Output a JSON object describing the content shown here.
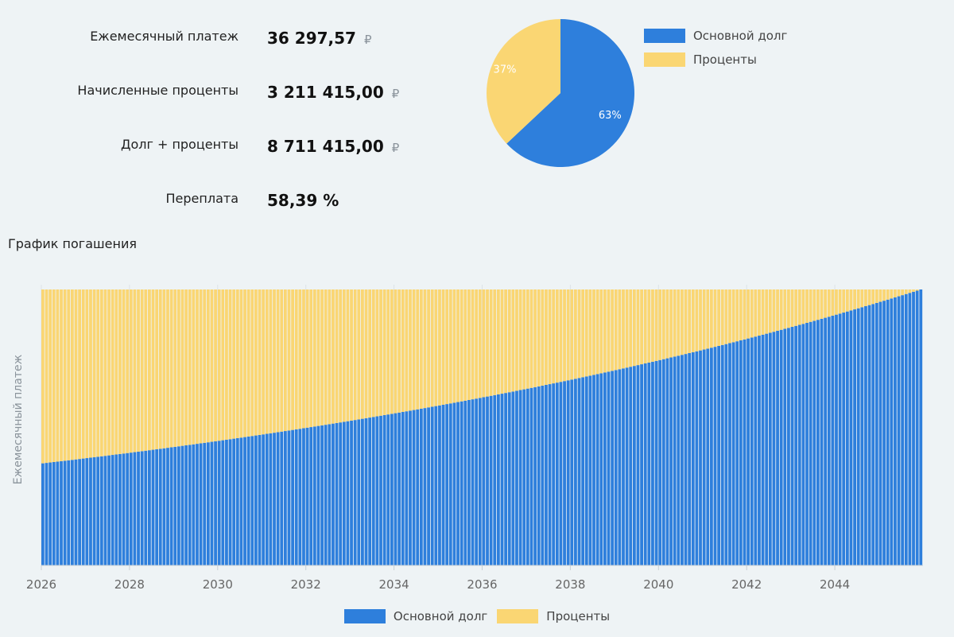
{
  "summary": [
    {
      "label": "Ежемесячный платеж",
      "value": "36 297,57",
      "currency": "₽"
    },
    {
      "label": "Начисленные проценты",
      "value": "3 211 415,00",
      "currency": "₽"
    },
    {
      "label": "Долг + проценты",
      "value": "8 711 415,00",
      "currency": "₽"
    },
    {
      "label": "Переплата",
      "value": "58,39 %",
      "currency": ""
    }
  ],
  "colors": {
    "principal": "#2e7fdc",
    "interest": "#fad673",
    "grid": "#dde3e7",
    "axis": "#666666"
  },
  "legend": {
    "principal": "Основной долг",
    "interest": "Проценты"
  },
  "chart_data": [
    {
      "type": "pie",
      "labels": [
        "Основной долг",
        "Проценты"
      ],
      "values": [
        63,
        37
      ],
      "data_labels": [
        "63%",
        "37%"
      ],
      "legend_position": "right"
    },
    {
      "type": "bar",
      "stacked": true,
      "title": "График погашения",
      "ylabel": "Ежемесячный платеж",
      "xlabel": "",
      "x_ticks": [
        "2026",
        "2028",
        "2030",
        "2032",
        "2034",
        "2036",
        "2038",
        "2040",
        "2042",
        "2044"
      ],
      "x_range": [
        2026,
        2046
      ],
      "bar_count": 240,
      "series": [
        {
          "name": "Основной долг",
          "start": 0.37,
          "end": 1.0
        },
        {
          "name": "Проценты",
          "start": 0.63,
          "end": 0.0
        }
      ],
      "grid": true,
      "legend_position": "bottom"
    }
  ]
}
